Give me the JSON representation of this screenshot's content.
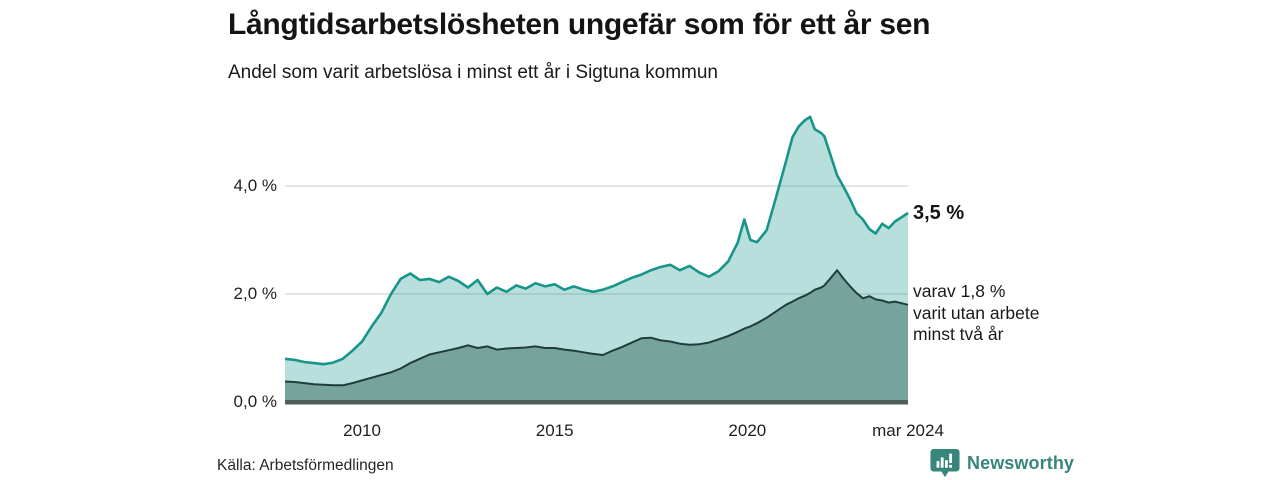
{
  "header": {
    "title": "Långtidsarbetslösheten ungefär som för ett år sen",
    "subtitle": "Andel som varit arbetslösa i minst ett år i Sigtuna kommun"
  },
  "annotations": {
    "total_label": "3,5 %",
    "two_year_label": "varav 1,8 %\nvarit utan arbete\nminst två år"
  },
  "footer": {
    "source": "Källa: Arbetsförmedlingen",
    "brand": "Newsworthy"
  },
  "colors": {
    "total_line": "#18958a",
    "total_fill": "rgba(24,149,138,0.30)",
    "two_year_line": "#1e3d3b",
    "two_year_fill": "#76a49d",
    "baseline": "#4f5e5b",
    "gridline": "#dcdcdc",
    "brand_teal": "#38857c"
  },
  "chart_data": {
    "type": "area",
    "title": "Långtidsarbetslösheten ungefär som för ett år sen",
    "subtitle": "Andel som varit arbetslösa i minst ett år i Sigtuna kommun",
    "xlabel": "",
    "ylabel": "",
    "x_unit": "year (decimal = fraction of year)",
    "xlim": [
      2008.0,
      2024.17
    ],
    "ylim": [
      0,
      5.6
    ],
    "grid": "horizontal",
    "legend_position": "right-edge-annotations",
    "y_ticks": [
      {
        "label": "0,0 %",
        "value": 0
      },
      {
        "label": "2,0 %",
        "value": 2
      },
      {
        "label": "4,0 %",
        "value": 4
      }
    ],
    "x_ticks": [
      {
        "label": "2010",
        "x": 2010
      },
      {
        "label": "2015",
        "x": 2015
      },
      {
        "label": "2020",
        "x": 2020
      },
      {
        "label": "mar 2024",
        "x": 2024.17
      }
    ],
    "x": [
      2008.0,
      2008.25,
      2008.5,
      2008.75,
      2009.0,
      2009.25,
      2009.5,
      2009.75,
      2010.0,
      2010.25,
      2010.5,
      2010.75,
      2011.0,
      2011.25,
      2011.5,
      2011.75,
      2012.0,
      2012.25,
      2012.5,
      2012.75,
      2013.0,
      2013.25,
      2013.5,
      2013.75,
      2014.0,
      2014.25,
      2014.5,
      2014.75,
      2015.0,
      2015.25,
      2015.5,
      2015.75,
      2016.0,
      2016.25,
      2016.5,
      2016.75,
      2017.0,
      2017.25,
      2017.5,
      2017.75,
      2018.0,
      2018.25,
      2018.5,
      2018.75,
      2019.0,
      2019.25,
      2019.5,
      2019.75,
      2019.92,
      2020.08,
      2020.25,
      2020.5,
      2020.75,
      2021.0,
      2021.17,
      2021.33,
      2021.5,
      2021.63,
      2021.75,
      2021.92,
      2022.0,
      2022.17,
      2022.33,
      2022.5,
      2022.67,
      2022.83,
      2023.0,
      2023.17,
      2023.33,
      2023.5,
      2023.67,
      2023.83,
      2024.0,
      2024.17
    ],
    "series": [
      {
        "name": "Andel arbetslösa minst ett år",
        "end_label": "3,5 %",
        "end_value": 3.5,
        "values": [
          0.8,
          0.78,
          0.74,
          0.72,
          0.7,
          0.73,
          0.8,
          0.95,
          1.12,
          1.4,
          1.65,
          2.0,
          2.28,
          2.38,
          2.26,
          2.28,
          2.22,
          2.32,
          2.24,
          2.12,
          2.26,
          2.0,
          2.12,
          2.04,
          2.16,
          2.1,
          2.2,
          2.14,
          2.18,
          2.08,
          2.14,
          2.08,
          2.04,
          2.08,
          2.14,
          2.22,
          2.3,
          2.36,
          2.44,
          2.5,
          2.54,
          2.44,
          2.52,
          2.4,
          2.32,
          2.42,
          2.6,
          2.95,
          3.38,
          3.0,
          2.96,
          3.18,
          3.8,
          4.45,
          4.9,
          5.1,
          5.22,
          5.28,
          5.05,
          4.98,
          4.92,
          4.55,
          4.2,
          3.98,
          3.75,
          3.5,
          3.38,
          3.2,
          3.12,
          3.3,
          3.22,
          3.34,
          3.42,
          3.5
        ]
      },
      {
        "name": "varav utan arbete minst två år",
        "end_label": "varav 1,8 % varit utan arbete minst två år",
        "end_value": 1.8,
        "values": [
          0.38,
          0.37,
          0.35,
          0.33,
          0.32,
          0.31,
          0.31,
          0.35,
          0.4,
          0.45,
          0.5,
          0.55,
          0.62,
          0.72,
          0.8,
          0.88,
          0.92,
          0.96,
          1.0,
          1.05,
          1.0,
          1.03,
          0.97,
          0.99,
          1.0,
          1.01,
          1.03,
          1.0,
          1.0,
          0.97,
          0.95,
          0.92,
          0.89,
          0.87,
          0.95,
          1.02,
          1.1,
          1.18,
          1.19,
          1.14,
          1.12,
          1.08,
          1.06,
          1.07,
          1.1,
          1.16,
          1.22,
          1.3,
          1.36,
          1.4,
          1.46,
          1.56,
          1.68,
          1.8,
          1.86,
          1.92,
          1.97,
          2.02,
          2.08,
          2.12,
          2.16,
          2.3,
          2.44,
          2.28,
          2.14,
          2.02,
          1.92,
          1.96,
          1.9,
          1.88,
          1.84,
          1.86,
          1.83,
          1.8
        ]
      }
    ]
  }
}
